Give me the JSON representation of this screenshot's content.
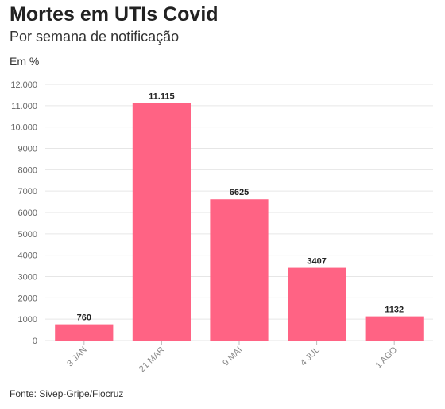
{
  "title": "Mortes em UTIs Covid",
  "subtitle": "Por semana de notificação",
  "unit_label": "Em %",
  "source": "Fonte: Sivep-Gripe/Fiocruz",
  "colors": {
    "bar": "#ff6384",
    "grid": "#e6e6e6"
  },
  "chart_data": {
    "type": "bar",
    "categories": [
      "3 JAN",
      "21 MAR",
      "9 MAI",
      "4 JUL",
      "1 AGO"
    ],
    "values": [
      760,
      11115,
      6625,
      3407,
      1132
    ],
    "data_labels": [
      "760",
      "11.115",
      "6625",
      "3407",
      "1132"
    ],
    "ylim": [
      0,
      12000
    ],
    "y_ticks": [
      0,
      1000,
      2000,
      3000,
      4000,
      5000,
      6000,
      7000,
      8000,
      9000,
      10000,
      11000,
      12000
    ],
    "y_tick_labels": [
      "0",
      "1000",
      "2000",
      "3000",
      "4000",
      "5000",
      "6000",
      "7000",
      "8000",
      "9000",
      "10.000",
      "11.000",
      "12.000"
    ],
    "grid": true,
    "legend": false
  }
}
